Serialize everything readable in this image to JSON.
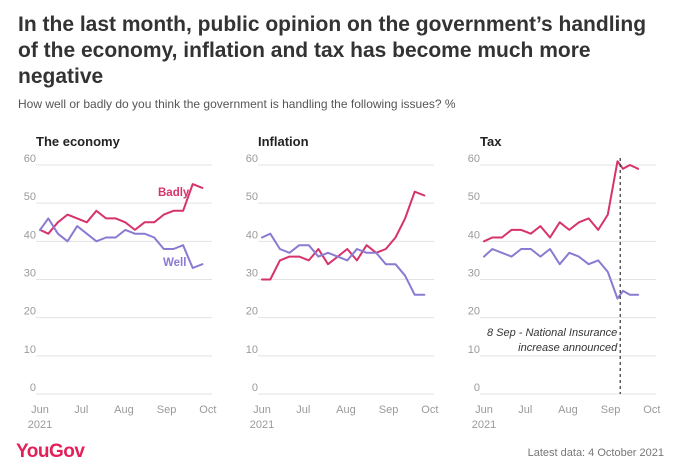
{
  "header": {
    "title": "In the last month, public opinion on the government’s handling of the economy, inflation and tax has become much more negative",
    "subtitle": "How well or badly do you think the government is handling the following issues? %"
  },
  "footer": {
    "brand": "YouGov",
    "latest_data": "Latest data: 4 October 2021"
  },
  "colors": {
    "badly": "#d6336c",
    "well": "#8b7ad1",
    "grid": "#e3e3e3",
    "annotation_line": "#333333"
  },
  "chart_data": [
    {
      "type": "line",
      "title": "The economy",
      "x_ticks": [
        "Jun",
        "Jul",
        "Aug",
        "Sep",
        "Oct"
      ],
      "x_sub_label": "2021",
      "ylim": [
        0,
        60
      ],
      "y_ticks": [
        0,
        10,
        20,
        30,
        40,
        50,
        60
      ],
      "grid": true,
      "x_dates": [
        "2021-06-01",
        "2021-06-07",
        "2021-06-14",
        "2021-06-21",
        "2021-06-28",
        "2021-07-05",
        "2021-07-12",
        "2021-07-19",
        "2021-07-26",
        "2021-08-02",
        "2021-08-09",
        "2021-08-16",
        "2021-08-23",
        "2021-08-30",
        "2021-09-06",
        "2021-09-13",
        "2021-09-20",
        "2021-09-27",
        "2021-10-04"
      ],
      "series": [
        {
          "name": "Badly",
          "color": "#d6336c",
          "values": [
            43,
            42,
            45,
            47,
            46,
            45,
            48,
            46,
            46,
            45,
            43,
            45,
            45,
            47,
            48,
            48,
            55,
            54,
            null
          ]
        },
        {
          "name": "Well",
          "color": "#8b7ad1",
          "values": [
            43,
            46,
            42,
            40,
            44,
            42,
            40,
            41,
            41,
            43,
            42,
            42,
            41,
            38,
            38,
            39,
            33,
            34,
            null
          ]
        }
      ]
    },
    {
      "type": "line",
      "title": "Inflation",
      "x_ticks": [
        "Jun",
        "Jul",
        "Aug",
        "Sep",
        "Oct"
      ],
      "x_sub_label": "2021",
      "ylim": [
        0,
        60
      ],
      "y_ticks": [
        0,
        10,
        20,
        30,
        40,
        50,
        60
      ],
      "grid": true,
      "x_dates": [
        "2021-06-01",
        "2021-06-07",
        "2021-06-14",
        "2021-06-21",
        "2021-06-28",
        "2021-07-05",
        "2021-07-12",
        "2021-07-19",
        "2021-07-26",
        "2021-08-02",
        "2021-08-09",
        "2021-08-16",
        "2021-08-23",
        "2021-08-30",
        "2021-09-06",
        "2021-09-13",
        "2021-09-20",
        "2021-09-27",
        "2021-10-04"
      ],
      "series": [
        {
          "name": "",
          "color": "#d6336c",
          "values": [
            30,
            30,
            35,
            36,
            36,
            35,
            38,
            34,
            36,
            38,
            35,
            39,
            37,
            38,
            41,
            46,
            53,
            52,
            null
          ]
        },
        {
          "name": "",
          "color": "#8b7ad1",
          "values": [
            41,
            42,
            38,
            37,
            39,
            39,
            36,
            37,
            36,
            35,
            38,
            37,
            37,
            34,
            34,
            31,
            26,
            26,
            null
          ]
        }
      ]
    },
    {
      "type": "line",
      "title": "Tax",
      "x_ticks": [
        "Jun",
        "Jul",
        "Aug",
        "Sep",
        "Oct"
      ],
      "x_sub_label": "2021",
      "ylim": [
        0,
        60
      ],
      "y_ticks": [
        0,
        10,
        20,
        30,
        40,
        50,
        60
      ],
      "grid": true,
      "x_dates": [
        "2021-06-01",
        "2021-06-07",
        "2021-06-14",
        "2021-06-21",
        "2021-06-28",
        "2021-07-05",
        "2021-07-12",
        "2021-07-19",
        "2021-07-26",
        "2021-08-02",
        "2021-08-09",
        "2021-08-16",
        "2021-08-23",
        "2021-08-30",
        "2021-09-06",
        "2021-09-10",
        "2021-09-15",
        "2021-09-21",
        "2021-09-27",
        "2021-10-04"
      ],
      "series": [
        {
          "name": "",
          "color": "#d6336c",
          "values": [
            40,
            41,
            41,
            43,
            43,
            42,
            44,
            41,
            45,
            43,
            45,
            46,
            43,
            47,
            61,
            59,
            60,
            59,
            null,
            null
          ]
        },
        {
          "name": "",
          "color": "#8b7ad1",
          "values": [
            36,
            38,
            37,
            36,
            38,
            38,
            36,
            38,
            34,
            37,
            36,
            34,
            35,
            32,
            25,
            27,
            26,
            26,
            null,
            null
          ]
        }
      ],
      "annotation": {
        "date": "2021-09-08",
        "line1": "8 Sep - National Insurance",
        "line2": "increase announced"
      }
    }
  ]
}
